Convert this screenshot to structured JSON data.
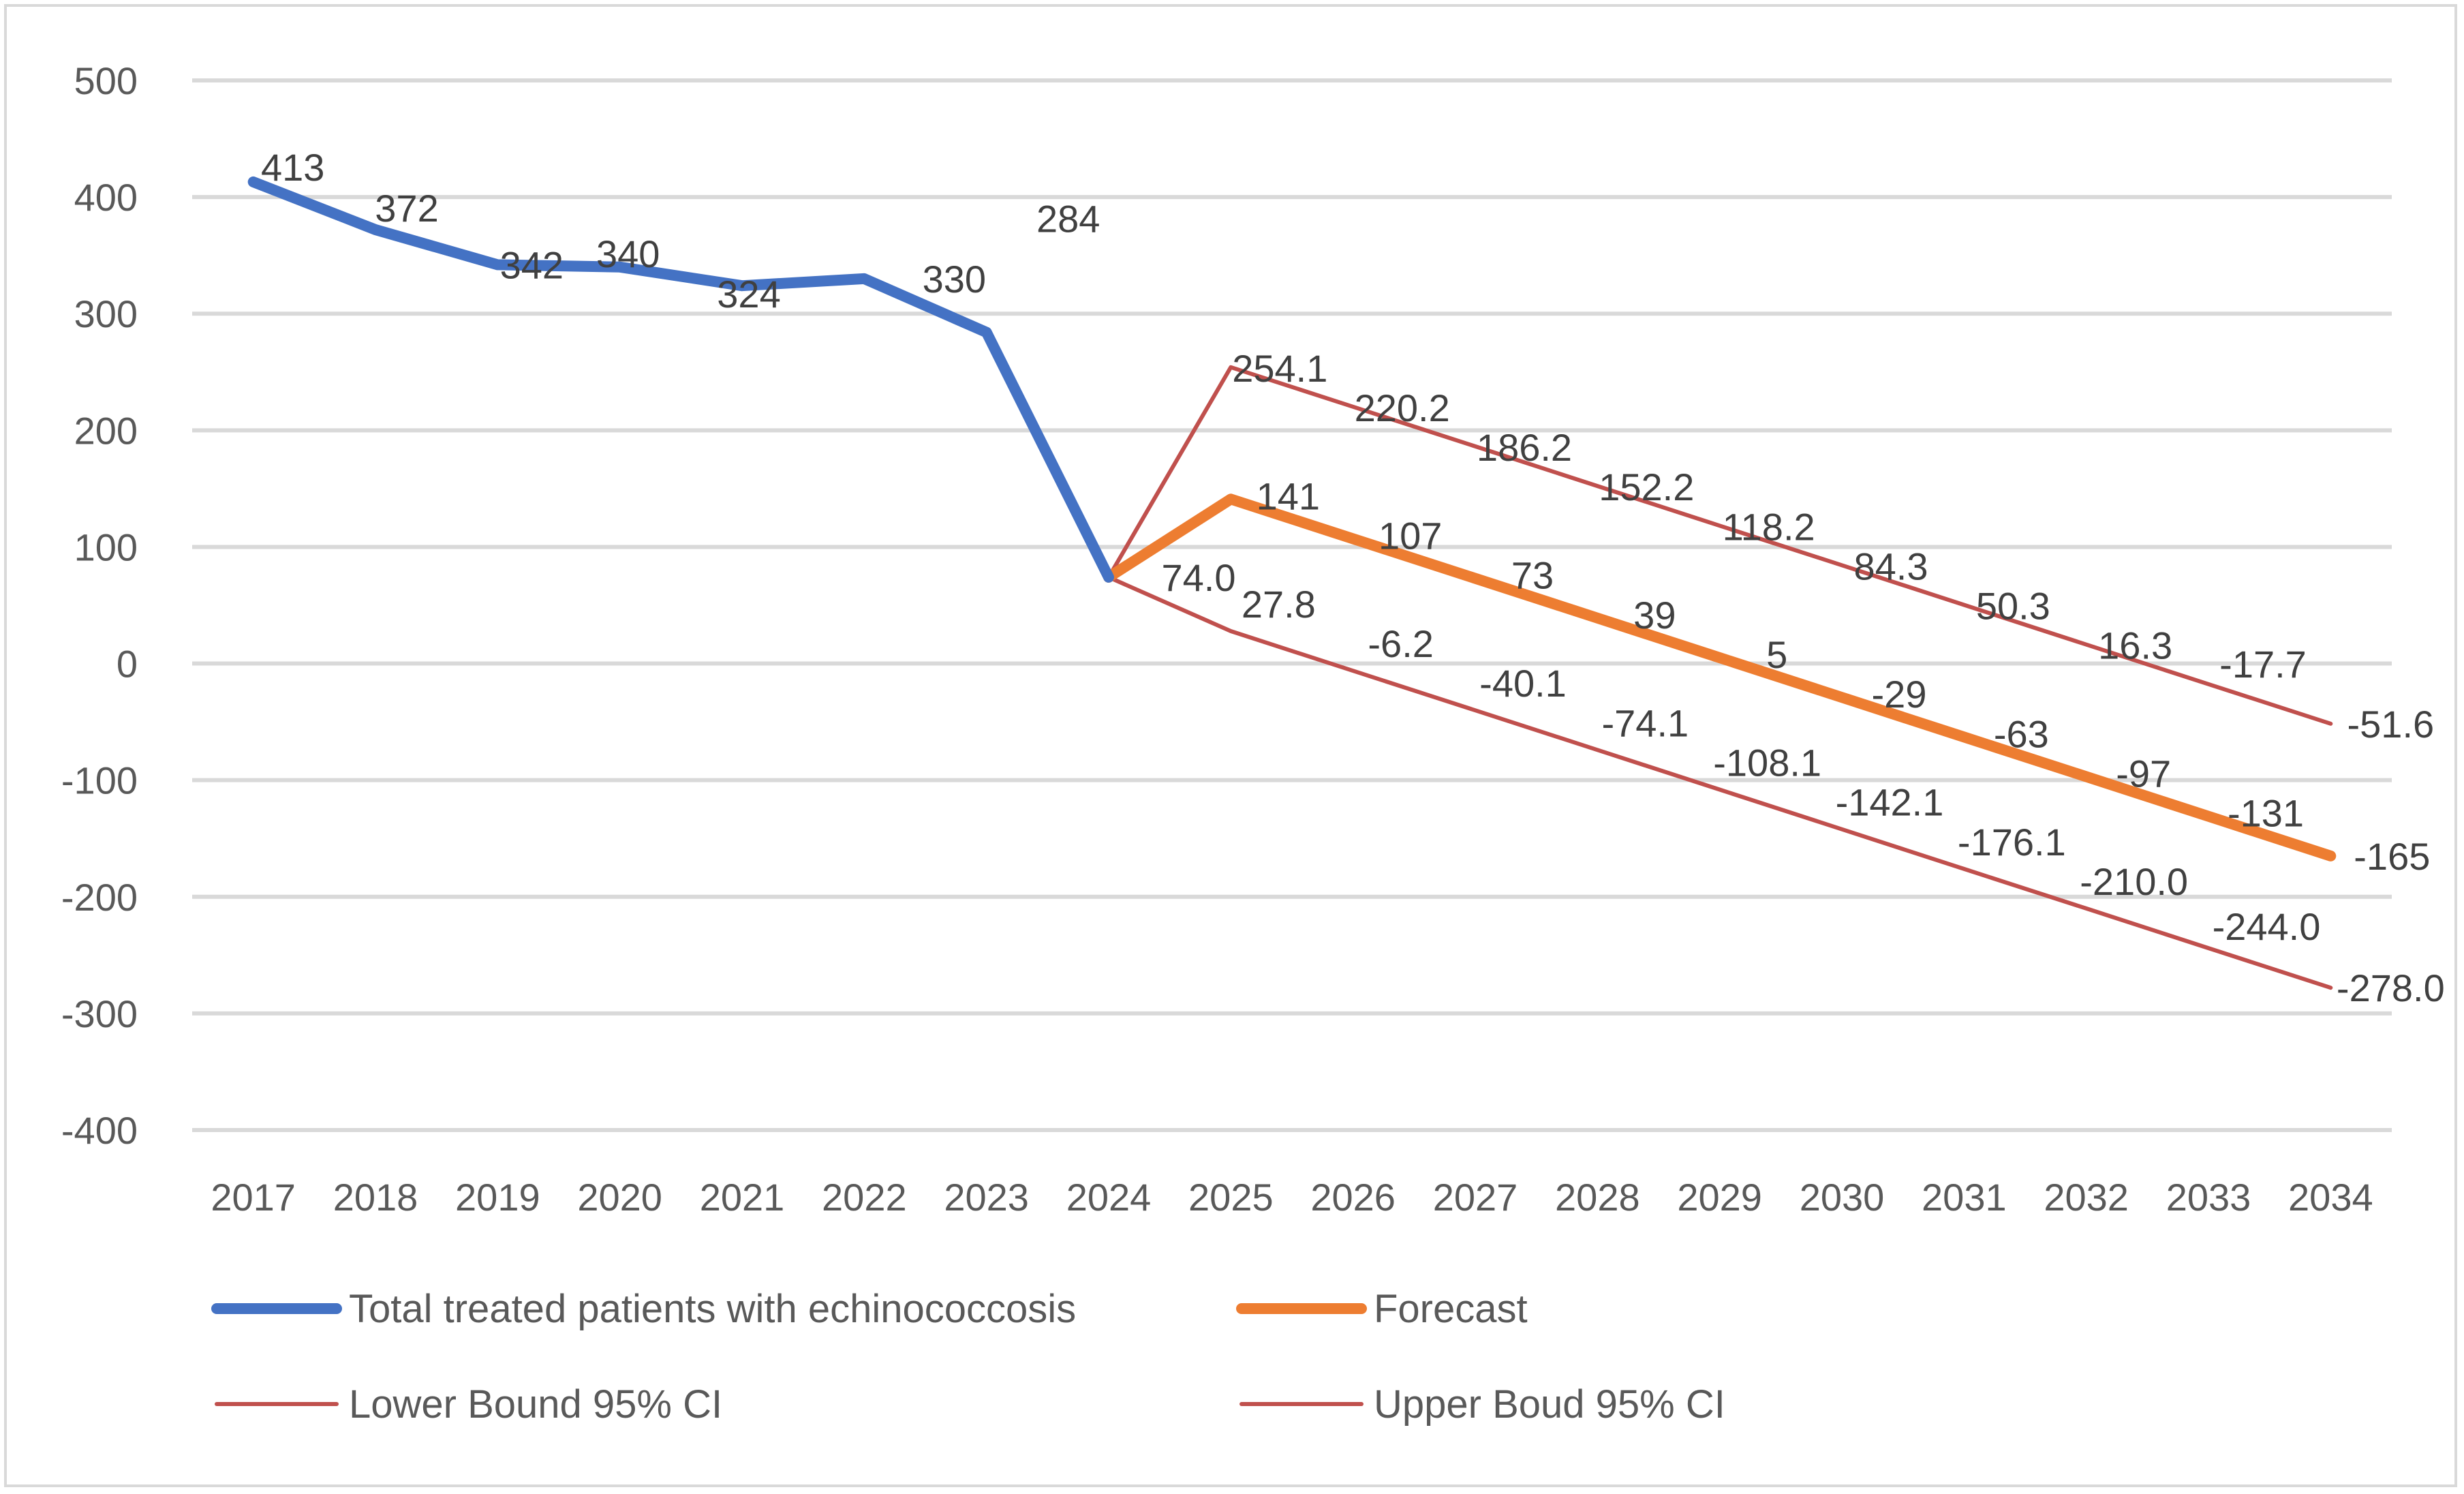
{
  "chart_data": {
    "type": "line",
    "title": "",
    "xlabel": "",
    "ylabel": "",
    "ylim": [
      -400,
      500
    ],
    "yticks": [
      500,
      400,
      300,
      200,
      100,
      0,
      -100,
      -200,
      -300,
      -400
    ],
    "grid": true,
    "legend_position": "bottom",
    "categories": [
      "2017",
      "2018",
      "2019",
      "2020",
      "2021",
      "2022",
      "2023",
      "2024",
      "2025",
      "2026",
      "2027",
      "2028",
      "2029",
      "2030",
      "2031",
      "2032",
      "2033",
      "2034"
    ],
    "series": [
      {
        "name": "Total treated patients with echinococcosis",
        "color": "#4472c4",
        "width": "thick",
        "values": [
          413,
          372,
          342,
          340,
          324,
          330,
          284,
          74,
          null,
          null,
          null,
          null,
          null,
          null,
          null,
          null,
          null,
          null
        ],
        "labels": [
          "413",
          "372",
          "342",
          "340",
          "324",
          "330",
          "284",
          null,
          null,
          null,
          null,
          null,
          null,
          null,
          null,
          null,
          null,
          null
        ]
      },
      {
        "name": "Forecast",
        "color": "#ed7d31",
        "width": "thick",
        "values": [
          null,
          null,
          null,
          null,
          null,
          null,
          null,
          74,
          141,
          107,
          73,
          39,
          5,
          -29,
          -63,
          -97,
          -131,
          -165
        ],
        "labels": [
          null,
          null,
          null,
          null,
          null,
          null,
          null,
          null,
          "141",
          "107",
          "73",
          "39",
          "5",
          "-29",
          "-63",
          "-97",
          "-131",
          "-165"
        ]
      },
      {
        "name": "Lower Bound 95% CI",
        "color": "#c0504d",
        "width": "thin",
        "values": [
          null,
          null,
          null,
          null,
          null,
          null,
          null,
          74.0,
          27.8,
          -6.2,
          -40.1,
          -74.1,
          -108.1,
          -142.1,
          -176.1,
          -210.0,
          -244.0,
          -278.0
        ],
        "labels": [
          null,
          null,
          null,
          null,
          null,
          null,
          null,
          "74.0",
          "27.8",
          "-6.2",
          "-40.1",
          "-74.1",
          "-108.1",
          "-142.1",
          "-176.1",
          "-210.0",
          "-244.0",
          "-278.0"
        ]
      },
      {
        "name": "Upper Boud 95% CI",
        "color": "#c0504d",
        "width": "thin",
        "values": [
          null,
          null,
          null,
          null,
          null,
          null,
          null,
          74.0,
          254.1,
          220.2,
          186.2,
          152.2,
          118.2,
          84.3,
          50.3,
          16.3,
          -17.7,
          -51.6
        ],
        "labels": [
          null,
          null,
          null,
          null,
          null,
          null,
          null,
          null,
          "254.1",
          "220.2",
          "186.2",
          "152.2",
          "118.2",
          "84.3",
          "50.3",
          "16.3",
          "-17.7",
          "-51.6"
        ]
      }
    ]
  }
}
